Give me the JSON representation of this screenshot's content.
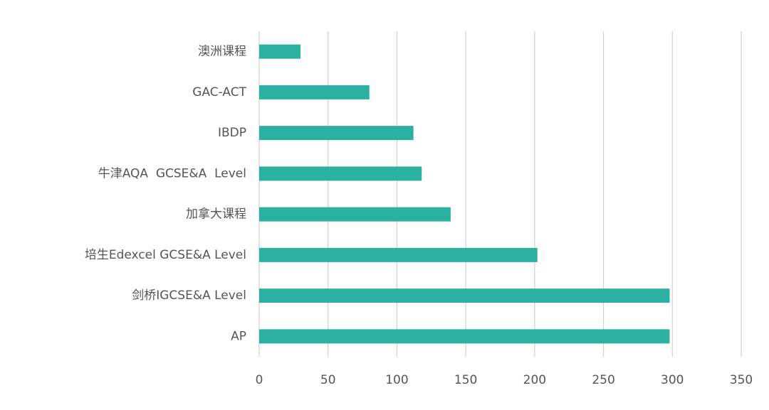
{
  "chart_data": {
    "type": "barh",
    "categories": [
      "澳洲课程",
      "GAC-ACT",
      "IBDP",
      "牛津AQA  GCSE&A  Level",
      "加拿大课程",
      "培生Edexcel GCSE&A Level",
      "剑桥IGCSE&A Level",
      "AP"
    ],
    "values": [
      30,
      80,
      112,
      118,
      139,
      202,
      298,
      298
    ],
    "color": "#2bb0a2",
    "xlim": [
      0,
      350
    ],
    "xticks": [
      0,
      50,
      100,
      150,
      200,
      250,
      300,
      350
    ],
    "grid": true
  }
}
